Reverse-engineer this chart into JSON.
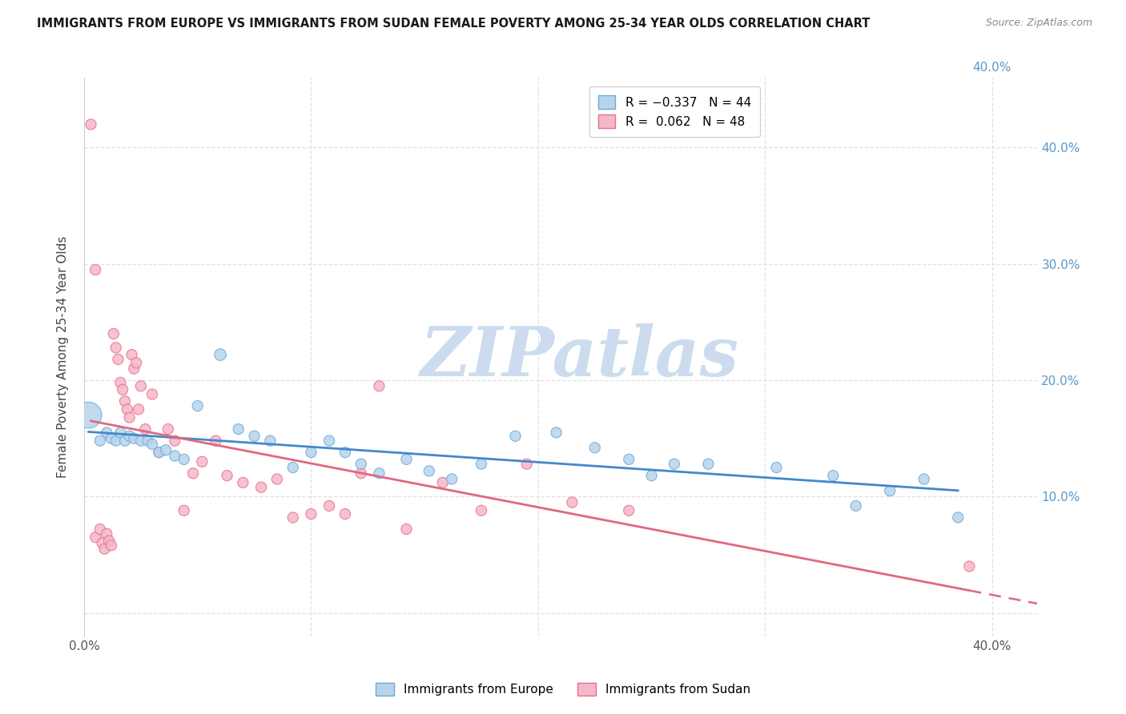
{
  "title": "IMMIGRANTS FROM EUROPE VS IMMIGRANTS FROM SUDAN FEMALE POVERTY AMONG 25-34 YEAR OLDS CORRELATION CHART",
  "source": "Source: ZipAtlas.com",
  "ylabel": "Female Poverty Among 25-34 Year Olds",
  "xlim": [
    0.0,
    0.42
  ],
  "ylim": [
    -0.02,
    0.46
  ],
  "europe_color": "#b8d4ec",
  "sudan_color": "#f5b8c8",
  "europe_edge_color": "#6aaad8",
  "sudan_edge_color": "#e8708a",
  "europe_line_color": "#4488cc",
  "sudan_line_color": "#e06880",
  "watermark": "ZIPatlas",
  "watermark_color": "#ccdcee",
  "background_color": "#ffffff",
  "grid_color": "#e0e0e0",
  "europe_x": [
    0.002,
    0.007,
    0.01,
    0.012,
    0.014,
    0.016,
    0.018,
    0.02,
    0.022,
    0.025,
    0.028,
    0.03,
    0.033,
    0.036,
    0.04,
    0.044,
    0.05,
    0.06,
    0.068,
    0.075,
    0.082,
    0.092,
    0.1,
    0.108,
    0.115,
    0.122,
    0.13,
    0.142,
    0.152,
    0.162,
    0.175,
    0.19,
    0.208,
    0.225,
    0.25,
    0.275,
    0.305,
    0.33,
    0.355,
    0.385,
    0.24,
    0.26,
    0.34,
    0.37
  ],
  "europe_y": [
    0.17,
    0.148,
    0.155,
    0.15,
    0.148,
    0.155,
    0.148,
    0.152,
    0.15,
    0.148,
    0.148,
    0.145,
    0.138,
    0.14,
    0.135,
    0.132,
    0.178,
    0.222,
    0.158,
    0.152,
    0.148,
    0.125,
    0.138,
    0.148,
    0.138,
    0.128,
    0.12,
    0.132,
    0.122,
    0.115,
    0.128,
    0.152,
    0.155,
    0.142,
    0.118,
    0.128,
    0.125,
    0.118,
    0.105,
    0.082,
    0.132,
    0.128,
    0.092,
    0.115
  ],
  "europe_size": [
    550,
    90,
    90,
    90,
    90,
    90,
    90,
    90,
    90,
    90,
    90,
    90,
    90,
    90,
    90,
    90,
    90,
    110,
    90,
    90,
    90,
    90,
    90,
    90,
    90,
    90,
    90,
    90,
    90,
    90,
    90,
    90,
    90,
    90,
    90,
    90,
    90,
    90,
    90,
    90,
    90,
    90,
    90,
    90
  ],
  "sudan_x": [
    0.003,
    0.005,
    0.007,
    0.008,
    0.009,
    0.01,
    0.011,
    0.012,
    0.013,
    0.014,
    0.015,
    0.016,
    0.017,
    0.018,
    0.019,
    0.02,
    0.021,
    0.022,
    0.023,
    0.024,
    0.025,
    0.027,
    0.03,
    0.033,
    0.037,
    0.04,
    0.044,
    0.048,
    0.052,
    0.058,
    0.063,
    0.07,
    0.078,
    0.085,
    0.092,
    0.1,
    0.108,
    0.115,
    0.122,
    0.13,
    0.142,
    0.158,
    0.175,
    0.195,
    0.215,
    0.24,
    0.39,
    0.005
  ],
  "sudan_y": [
    0.42,
    0.065,
    0.072,
    0.06,
    0.055,
    0.068,
    0.062,
    0.058,
    0.24,
    0.228,
    0.218,
    0.198,
    0.192,
    0.182,
    0.175,
    0.168,
    0.222,
    0.21,
    0.215,
    0.175,
    0.195,
    0.158,
    0.188,
    0.138,
    0.158,
    0.148,
    0.088,
    0.12,
    0.13,
    0.148,
    0.118,
    0.112,
    0.108,
    0.115,
    0.082,
    0.085,
    0.092,
    0.085,
    0.12,
    0.195,
    0.072,
    0.112,
    0.088,
    0.128,
    0.095,
    0.088,
    0.04,
    0.295
  ],
  "sudan_size": [
    90,
    90,
    90,
    90,
    90,
    90,
    90,
    90,
    90,
    90,
    90,
    90,
    90,
    90,
    90,
    90,
    90,
    90,
    90,
    90,
    90,
    90,
    90,
    90,
    90,
    90,
    90,
    90,
    90,
    90,
    90,
    90,
    90,
    90,
    90,
    90,
    90,
    90,
    90,
    90,
    90,
    90,
    90,
    90,
    90,
    90,
    90,
    90
  ]
}
